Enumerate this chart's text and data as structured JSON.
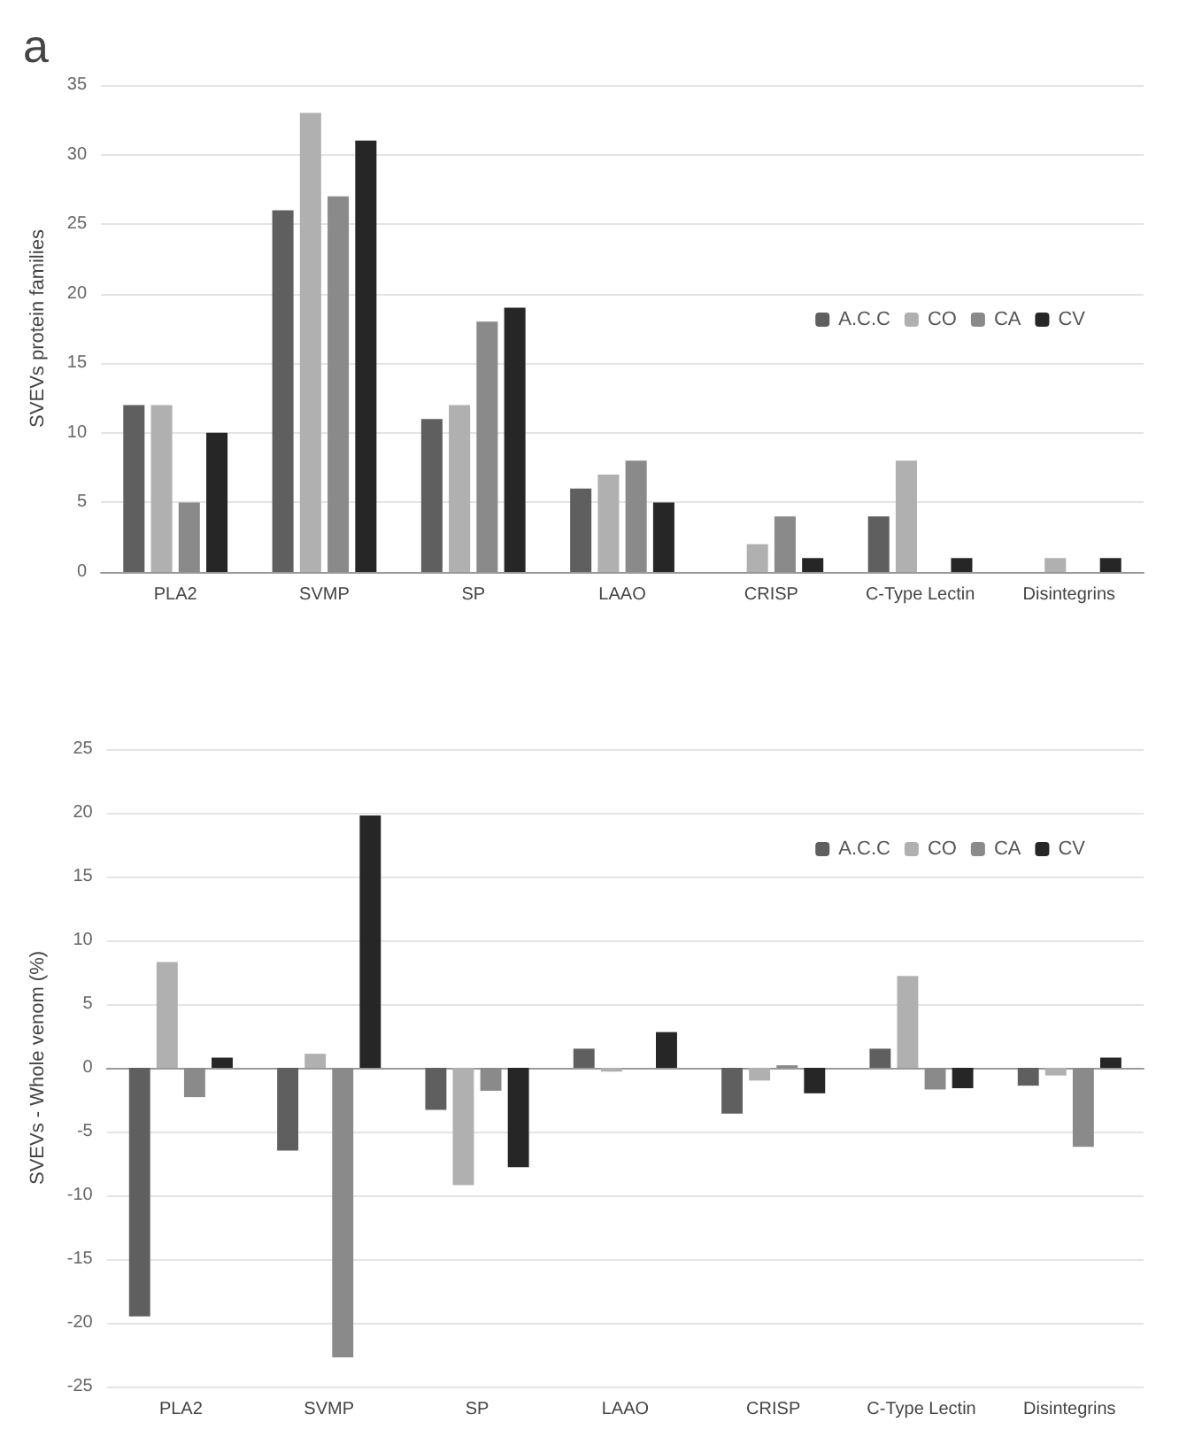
{
  "chart_data": [
    {
      "type": "bar",
      "title": "a",
      "ylabel": "SVEVs protein families",
      "categories": [
        "PLA2",
        "SVMP",
        "SP",
        "LAAO",
        "CRISP",
        "C-Type Lectin",
        "Disintegrins"
      ],
      "series": [
        {
          "name": "A.C.C",
          "color": "#5f5f5f",
          "values": [
            12,
            26,
            11,
            6,
            null,
            4,
            null
          ]
        },
        {
          "name": "CO",
          "color": "#b0b0b0",
          "values": [
            12,
            33,
            12,
            7,
            2,
            8,
            1
          ]
        },
        {
          "name": "CA",
          "color": "#8a8a8a",
          "values": [
            5,
            27,
            18,
            8,
            4,
            0,
            0
          ]
        },
        {
          "name": "CV",
          "color": "#262626",
          "values": [
            10,
            31,
            19,
            5,
            1,
            1,
            1
          ]
        }
      ],
      "ylim": [
        0,
        35
      ],
      "yticks": [
        0,
        5,
        10,
        15,
        20,
        25,
        30,
        35
      ],
      "grid": "y",
      "legend": "right"
    },
    {
      "type": "bar",
      "ylabel": "SVEVs - Whole venom (%)",
      "categories": [
        "PLA2",
        "SVMP",
        "SP",
        "LAAO",
        "CRISP",
        "C-Type Lectin",
        "Disintegrins"
      ],
      "series": [
        {
          "name": "A.C.C",
          "color": "#5f5f5f",
          "values": [
            -19.5,
            -6.5,
            -3.3,
            1.5,
            -3.6,
            1.5,
            -1.4
          ]
        },
        {
          "name": "CO",
          "color": "#b0b0b0",
          "values": [
            8.3,
            1.1,
            -9.2,
            -0.3,
            -1.0,
            7.2,
            -0.6
          ]
        },
        {
          "name": "CA",
          "color": "#8a8a8a",
          "values": [
            -2.3,
            -22.7,
            -1.8,
            0,
            0.2,
            -1.7,
            -6.2
          ]
        },
        {
          "name": "CV",
          "color": "#262626",
          "values": [
            0.8,
            19.8,
            -7.8,
            2.8,
            -2.0,
            -1.6,
            0.8
          ]
        }
      ],
      "ylim": [
        -25,
        25
      ],
      "yticks": [
        -25,
        -20,
        -15,
        -10,
        -5,
        0,
        5,
        10,
        15,
        20,
        25
      ],
      "grid": "y",
      "legend": "top right"
    }
  ]
}
